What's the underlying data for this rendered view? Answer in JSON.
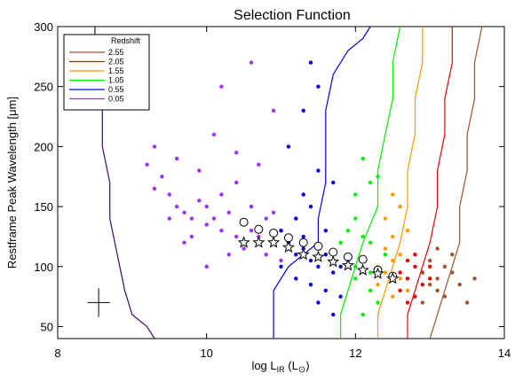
{
  "chart_data": {
    "type": "scatter",
    "title": "Selection Function",
    "xlabel": {
      "main": "log L",
      "sub": "IR",
      "unit": " (L",
      "unit_sub": "⊙",
      "unit_close": ")"
    },
    "ylabel": "Restframe Peak Wavelength [μm]",
    "xlim": [
      8,
      14
    ],
    "ylim": [
      40,
      300
    ],
    "xticks": [
      8,
      10,
      12,
      14
    ],
    "yticks": [
      50,
      100,
      150,
      200,
      250,
      300
    ],
    "legend": {
      "title": "Redshift",
      "position": "top-left"
    },
    "series": [
      {
        "name": "0.05",
        "color": "#9b30ff",
        "points": [
          [
            9.2,
            185
          ],
          [
            9.3,
            165
          ],
          [
            9.4,
            175
          ],
          [
            9.5,
            160
          ],
          [
            9.6,
            150
          ],
          [
            9.7,
            145
          ],
          [
            9.8,
            140
          ],
          [
            9.9,
            155
          ],
          [
            10.0,
            135
          ],
          [
            10.1,
            140
          ],
          [
            10.2,
            130
          ],
          [
            10.3,
            145
          ],
          [
            10.4,
            125
          ],
          [
            10.5,
            135
          ],
          [
            10.6,
            130
          ],
          [
            10.7,
            125
          ],
          [
            10.8,
            140
          ],
          [
            10.9,
            120
          ],
          [
            11.0,
            130
          ],
          [
            11.1,
            115
          ],
          [
            9.5,
            140
          ],
          [
            9.8,
            125
          ],
          [
            10.0,
            150
          ],
          [
            10.2,
            160
          ],
          [
            10.4,
            170
          ],
          [
            10.6,
            150
          ],
          [
            10.8,
            110
          ],
          [
            11.0,
            105
          ],
          [
            9.3,
            200
          ],
          [
            9.6,
            190
          ],
          [
            9.9,
            180
          ],
          [
            10.1,
            210
          ],
          [
            10.4,
            195
          ],
          [
            10.7,
            185
          ],
          [
            10.9,
            230
          ],
          [
            10.2,
            250
          ],
          [
            10.6,
            270
          ],
          [
            10.0,
            100
          ],
          [
            10.3,
            110
          ],
          [
            10.5,
            115
          ],
          [
            9.7,
            120
          ],
          [
            10.9,
            145
          ]
        ],
        "selection_boundary": [
          [
            8.5,
            300
          ],
          [
            8.5,
            260
          ],
          [
            8.6,
            230
          ],
          [
            8.6,
            200
          ],
          [
            8.7,
            170
          ],
          [
            8.7,
            140
          ],
          [
            8.8,
            110
          ],
          [
            8.9,
            80
          ],
          [
            9.0,
            60
          ],
          [
            9.2,
            50
          ],
          [
            9.3,
            40
          ]
        ]
      },
      {
        "name": "0.55",
        "color": "#0000ee",
        "points": [
          [
            11.0,
            130
          ],
          [
            11.1,
            120
          ],
          [
            11.2,
            110
          ],
          [
            11.3,
            115
          ],
          [
            11.4,
            105
          ],
          [
            11.5,
            100
          ],
          [
            11.6,
            110
          ],
          [
            11.7,
            95
          ],
          [
            11.8,
            100
          ],
          [
            11.2,
            140
          ],
          [
            11.4,
            150
          ],
          [
            11.6,
            130
          ],
          [
            11.3,
            160
          ],
          [
            11.5,
            180
          ],
          [
            11.7,
            170
          ],
          [
            11.1,
            200
          ],
          [
            11.3,
            230
          ],
          [
            11.5,
            250
          ],
          [
            11.4,
            270
          ],
          [
            11.2,
            90
          ],
          [
            11.4,
            85
          ],
          [
            11.6,
            80
          ],
          [
            11.8,
            75
          ],
          [
            11.0,
            100
          ],
          [
            11.9,
            105
          ],
          [
            11.5,
            70
          ],
          [
            11.7,
            60
          ],
          [
            11.3,
            125
          ]
        ],
        "selection_boundary": [
          [
            10.9,
            40
          ],
          [
            10.9,
            60
          ],
          [
            10.9,
            80
          ],
          [
            11.1,
            100
          ],
          [
            11.5,
            120
          ],
          [
            11.5,
            140
          ],
          [
            11.6,
            170
          ],
          [
            11.6,
            200
          ],
          [
            11.6,
            230
          ],
          [
            11.7,
            260
          ],
          [
            11.9,
            280
          ],
          [
            12.1,
            290
          ],
          [
            12.2,
            300
          ]
        ]
      },
      {
        "name": "1.05",
        "color": "#00ee00",
        "points": [
          [
            11.8,
            120
          ],
          [
            11.9,
            110
          ],
          [
            12.0,
            100
          ],
          [
            12.1,
            105
          ],
          [
            12.2,
            95
          ],
          [
            11.9,
            130
          ],
          [
            12.0,
            140
          ],
          [
            12.1,
            125
          ],
          [
            12.0,
            160
          ],
          [
            12.2,
            170
          ],
          [
            12.1,
            190
          ],
          [
            12.3,
            175
          ],
          [
            12.0,
            90
          ],
          [
            12.2,
            80
          ],
          [
            12.3,
            70
          ],
          [
            12.1,
            60
          ],
          [
            12.4,
            110
          ],
          [
            12.2,
            120
          ]
        ],
        "selection_boundary": [
          [
            11.8,
            40
          ],
          [
            11.8,
            60
          ],
          [
            11.9,
            80
          ],
          [
            12.0,
            100
          ],
          [
            12.1,
            120
          ],
          [
            12.3,
            150
          ],
          [
            12.3,
            180
          ],
          [
            12.4,
            210
          ],
          [
            12.5,
            240
          ],
          [
            12.5,
            270
          ],
          [
            12.6,
            300
          ]
        ]
      },
      {
        "name": "1.55",
        "color": "#ff9900",
        "points": [
          [
            12.3,
            100
          ],
          [
            12.4,
            95
          ],
          [
            12.5,
            105
          ],
          [
            12.6,
            90
          ],
          [
            12.4,
            115
          ],
          [
            12.5,
            125
          ],
          [
            12.6,
            110
          ],
          [
            12.3,
            85
          ],
          [
            12.5,
            75
          ],
          [
            12.7,
            80
          ],
          [
            12.4,
            140
          ],
          [
            12.6,
            150
          ],
          [
            12.7,
            130
          ],
          [
            12.5,
            160
          ]
        ],
        "selection_boundary": [
          [
            12.3,
            40
          ],
          [
            12.3,
            60
          ],
          [
            12.4,
            80
          ],
          [
            12.5,
            100
          ],
          [
            12.6,
            120
          ],
          [
            12.7,
            150
          ],
          [
            12.7,
            180
          ],
          [
            12.8,
            210
          ],
          [
            12.8,
            240
          ],
          [
            12.9,
            270
          ],
          [
            12.9,
            300
          ]
        ]
      },
      {
        "name": "2.05",
        "color": "#ee0000",
        "points": [
          [
            12.6,
            95
          ],
          [
            12.7,
            90
          ],
          [
            12.8,
            100
          ],
          [
            12.9,
            85
          ],
          [
            12.7,
            105
          ],
          [
            12.8,
            110
          ],
          [
            12.9,
            95
          ],
          [
            13.0,
            90
          ],
          [
            12.6,
            80
          ],
          [
            12.8,
            75
          ],
          [
            13.0,
            100
          ],
          [
            12.7,
            70
          ]
        ],
        "selection_boundary": [
          [
            12.7,
            40
          ],
          [
            12.7,
            60
          ],
          [
            12.8,
            80
          ],
          [
            12.9,
            100
          ],
          [
            13.0,
            120
          ],
          [
            13.1,
            150
          ],
          [
            13.1,
            180
          ],
          [
            13.2,
            210
          ],
          [
            13.2,
            240
          ],
          [
            13.3,
            270
          ],
          [
            13.3,
            300
          ]
        ]
      },
      {
        "name": "2.55",
        "color": "#a0522d",
        "points": [
          [
            12.9,
            95
          ],
          [
            13.0,
            85
          ],
          [
            13.1,
            90
          ],
          [
            13.2,
            100
          ],
          [
            13.0,
            105
          ],
          [
            13.1,
            80
          ],
          [
            13.3,
            95
          ],
          [
            13.2,
            75
          ],
          [
            13.4,
            85
          ],
          [
            13.5,
            70
          ],
          [
            13.3,
            110
          ],
          [
            13.1,
            115
          ],
          [
            13.6,
            90
          ],
          [
            12.9,
            70
          ]
        ],
        "selection_boundary": [
          [
            13.0,
            40
          ],
          [
            13.1,
            60
          ],
          [
            13.2,
            80
          ],
          [
            13.3,
            100
          ],
          [
            13.4,
            120
          ],
          [
            13.4,
            150
          ],
          [
            13.5,
            180
          ],
          [
            13.5,
            210
          ],
          [
            13.6,
            240
          ],
          [
            13.6,
            270
          ],
          [
            13.7,
            300
          ]
        ]
      }
    ],
    "medians_circles": [
      [
        10.5,
        137
      ],
      [
        10.7,
        131
      ],
      [
        10.9,
        128
      ],
      [
        11.1,
        124
      ],
      [
        11.3,
        120
      ],
      [
        11.5,
        117
      ],
      [
        11.7,
        112
      ],
      [
        11.9,
        108
      ],
      [
        12.1,
        106
      ],
      [
        12.3,
        97
      ],
      [
        12.5,
        92
      ]
    ],
    "medians_stars": [
      [
        10.5,
        120
      ],
      [
        10.7,
        120
      ],
      [
        10.9,
        120
      ],
      [
        11.1,
        116
      ],
      [
        11.3,
        110
      ],
      [
        11.5,
        108
      ],
      [
        11.7,
        104
      ],
      [
        11.9,
        101
      ],
      [
        12.1,
        97
      ],
      [
        12.3,
        94
      ],
      [
        12.5,
        90
      ]
    ],
    "error_bar": {
      "x": 8.55,
      "y": 70,
      "xerr": 0.15,
      "yerr": 12
    }
  }
}
